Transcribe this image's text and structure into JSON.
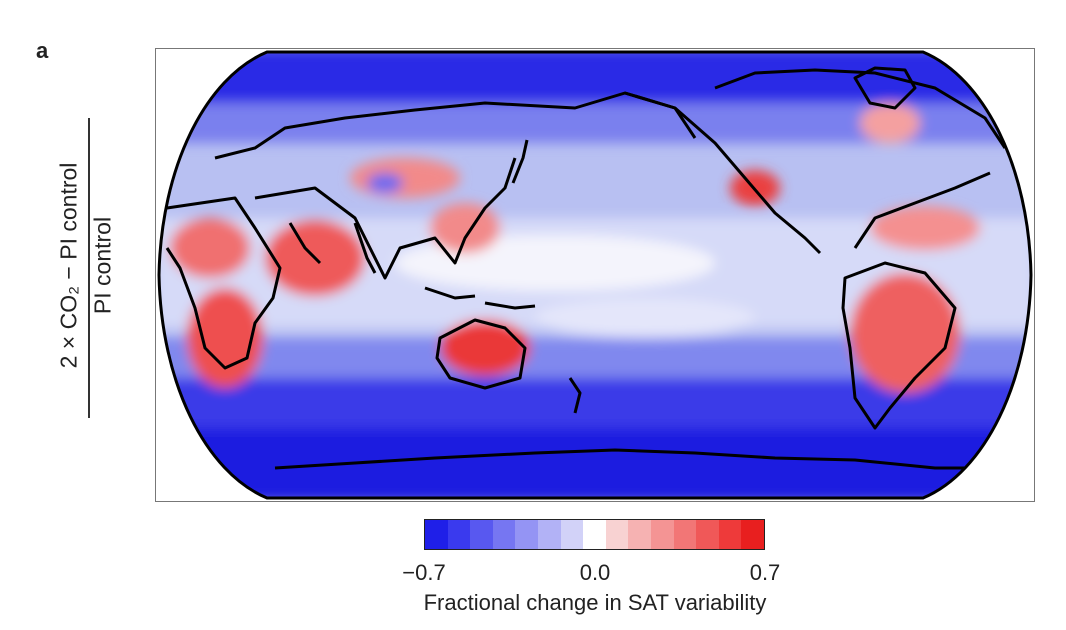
{
  "panel": {
    "label": "a"
  },
  "ylabel": {
    "numerator": "2 × CO₂ − PI control",
    "denominator": "PI control"
  },
  "map": {
    "projection": "Robinson",
    "central_longitude": "Pacific (~150°E)",
    "variable": "Fractional change in SAT variability",
    "pattern": {
      "high_latitudes": "strong decrease (blue)",
      "southern_ocean": "strong decrease (blue)",
      "tropical_land": "increase (red) over Africa, India, SE Asia, Australia, Amazon, Mexico",
      "tropical_ocean": "near zero (white) to slight decrease"
    },
    "colors": {
      "negative": "#1a1ae6",
      "zero": "#ffffff",
      "positive": "#e61a1a",
      "coastline": "#000000",
      "ocean_base": "#aab4f0"
    }
  },
  "colorbar": {
    "min_label": "−0.7",
    "mid_label": "0.0",
    "max_label": "0.7",
    "title": "Fractional change in SAT variability",
    "colors": [
      "#1f1fe8",
      "#3a3aee",
      "#5858f0",
      "#7676f2",
      "#9494f4",
      "#b2b2f6",
      "#d2d2f8",
      "#ffffff",
      "#f8d2d2",
      "#f6b2b2",
      "#f49494",
      "#f27676",
      "#f05858",
      "#ee3a3a",
      "#e81f1f"
    ]
  }
}
